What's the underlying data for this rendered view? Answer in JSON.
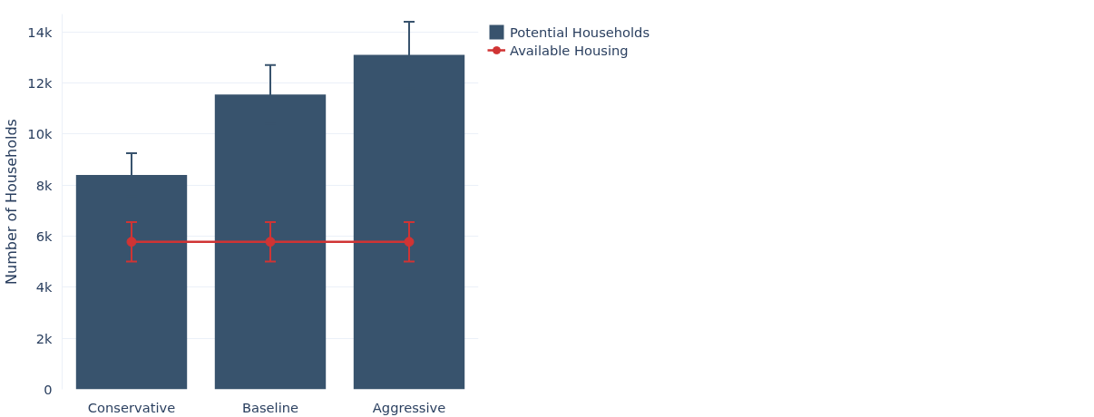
{
  "chart_data": {
    "type": "bar",
    "categories": [
      "Conservative",
      "Baseline",
      "Aggressive"
    ],
    "ylabel": "Number of Households",
    "ylim": [
      0,
      14700
    ],
    "yticks": [
      0,
      {
        "value": 2000,
        "label": "2k"
      },
      {
        "value": 4000,
        "label": "4k"
      },
      {
        "value": 6000,
        "label": "6k"
      },
      {
        "value": 8000,
        "label": "8k"
      },
      {
        "value": 10000,
        "label": "10k"
      },
      {
        "value": 12000,
        "label": "12k"
      },
      {
        "value": 14000,
        "label": "14k"
      }
    ],
    "grid": "y",
    "legend": "top right",
    "series": [
      {
        "name": "Potential Households",
        "color": "#38536d",
        "values": [
          8400,
          11550,
          13100
        ],
        "errors": [
          850,
          1150,
          1300
        ]
      },
      {
        "name": "Available Housing",
        "type": "line",
        "color": "#d03434",
        "marker": "circle",
        "values": [
          5780,
          5780,
          5780
        ],
        "errors": [
          770,
          770,
          770
        ]
      }
    ]
  }
}
